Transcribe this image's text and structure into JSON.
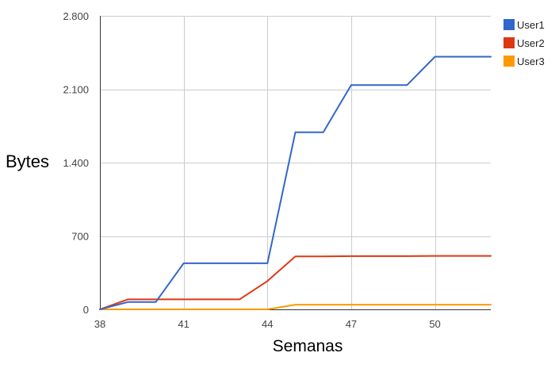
{
  "chart_data": {
    "type": "line",
    "xlabel": "Semanas",
    "ylabel": "Bytes",
    "xlim": [
      38,
      52
    ],
    "ylim": [
      0,
      2800
    ],
    "x_ticks": [
      38,
      41,
      44,
      47,
      50
    ],
    "x_tick_labels": [
      "38",
      "41",
      "44",
      "47",
      "50"
    ],
    "y_ticks": [
      0,
      700,
      1400,
      2100,
      2800
    ],
    "y_tick_labels": [
      "0",
      "700",
      "1.400",
      "2.100",
      "2.800"
    ],
    "grid": true,
    "legend_position": "top-right",
    "x": [
      38,
      39,
      40,
      41,
      42,
      43,
      44,
      45,
      46,
      47,
      48,
      49,
      50,
      51,
      52
    ],
    "series": [
      {
        "name": "User1",
        "color": "#3366cc",
        "values": [
          0,
          70,
          70,
          440,
          440,
          440,
          440,
          1690,
          1690,
          2140,
          2140,
          2140,
          2410,
          2410,
          2410
        ]
      },
      {
        "name": "User2",
        "color": "#dc3912",
        "values": [
          0,
          95,
          95,
          95,
          95,
          95,
          270,
          505,
          505,
          508,
          508,
          508,
          510,
          510,
          510
        ]
      },
      {
        "name": "User3",
        "color": "#ff9900",
        "values": [
          0,
          0,
          0,
          0,
          0,
          0,
          0,
          45,
          45,
          45,
          45,
          45,
          45,
          45,
          45
        ]
      }
    ]
  }
}
